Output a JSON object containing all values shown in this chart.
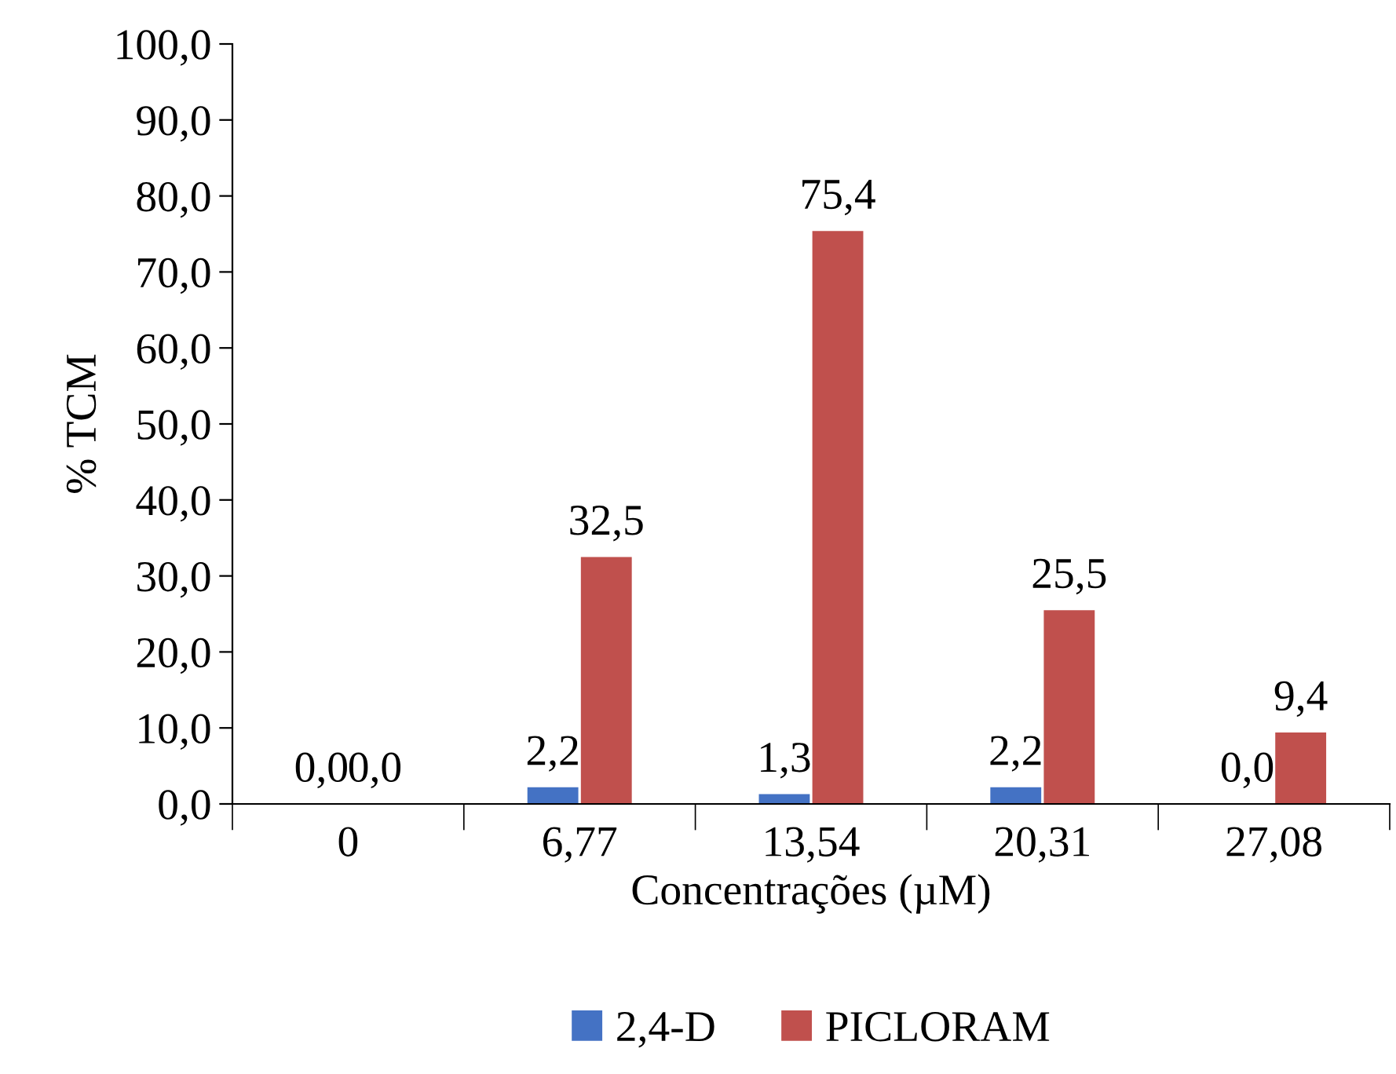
{
  "chart_data": {
    "type": "bar",
    "xlabel": "Concentrações (µM)",
    "ylabel": "% TCM",
    "categories": [
      "0",
      "6,77",
      "13,54",
      "20,31",
      "27,08"
    ],
    "series": [
      {
        "name": "2,4-D",
        "color": "#4472c4",
        "values": [
          0.0,
          2.2,
          1.3,
          2.2,
          0.0
        ],
        "value_labels": [
          "0,0",
          "2,2",
          "1,3",
          "2,2",
          "0,0"
        ]
      },
      {
        "name": "PICLORAM",
        "color": "#c0504d",
        "values": [
          0.0,
          32.5,
          75.4,
          25.5,
          9.4
        ],
        "value_labels": [
          "0,0",
          "32,5",
          "75,4",
          "25,5",
          "9,4"
        ]
      }
    ],
    "ylim": [
      0,
      100
    ],
    "yticks": [
      {
        "value": 0,
        "label": "0,0"
      },
      {
        "value": 10,
        "label": "10,0"
      },
      {
        "value": 20,
        "label": "20,0"
      },
      {
        "value": 30,
        "label": "30,0"
      },
      {
        "value": 40,
        "label": "40,0"
      },
      {
        "value": 50,
        "label": "50,0"
      },
      {
        "value": 60,
        "label": "60,0"
      },
      {
        "value": 70,
        "label": "70,0"
      },
      {
        "value": 80,
        "label": "80,0"
      },
      {
        "value": 90,
        "label": "90,0"
      },
      {
        "value": 100,
        "label": "100,0"
      }
    ],
    "grid": false,
    "legend": "bottom"
  }
}
